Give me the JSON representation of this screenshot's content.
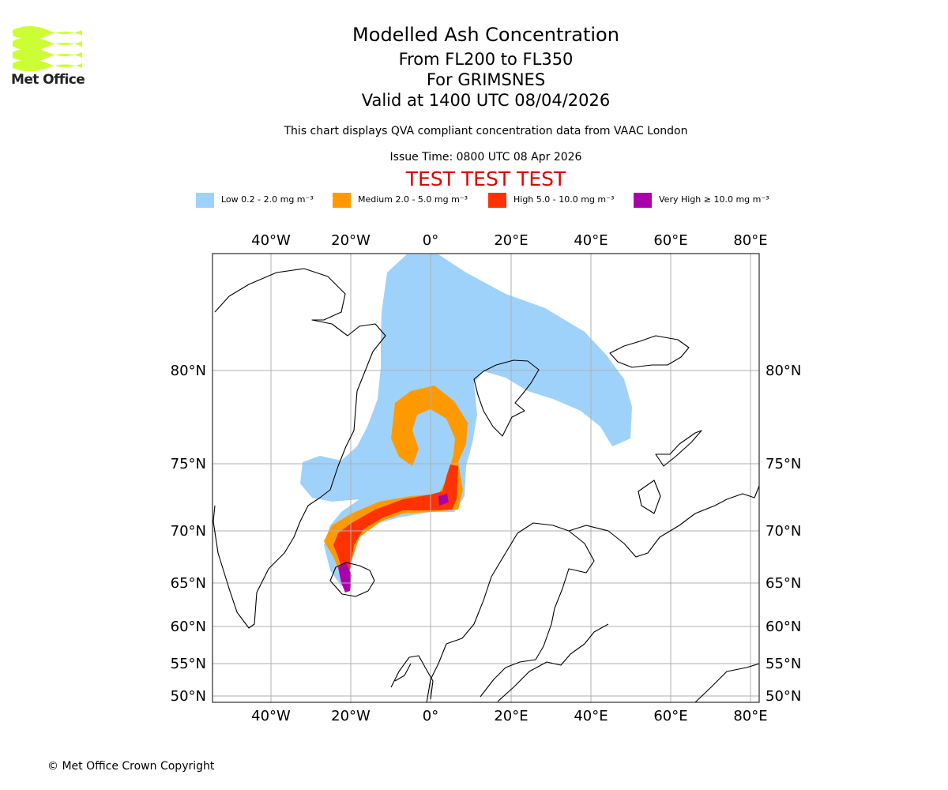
{
  "logo": {
    "text": "Met Office",
    "color": "#ccff33"
  },
  "titles": {
    "main": "Modelled Ash Concentration",
    "levels": "From FL200 to FL350",
    "volcano": "For GRIMSNES",
    "valid": "Valid at 1400 UTC 08/04/2026"
  },
  "note": "This chart displays QVA compliant concentration data from VAAC London",
  "issue_time": "Issue Time: 0800 UTC 08 Apr 2026",
  "test_banner": "TEST TEST TEST",
  "legend": [
    {
      "label": "Low 0.2 - 2.0 mg m⁻³",
      "color": "#9ed2fa"
    },
    {
      "label": "Medium 2.0 - 5.0 mg m⁻³",
      "color": "#ff9900"
    },
    {
      "label": "High 5.0 - 10.0 mg m⁻³",
      "color": "#ff3300"
    },
    {
      "label": "Very High ≥ 10.0 mg m⁻³",
      "color": "#aa00aa"
    }
  ],
  "axes": {
    "longitudes": [
      "40°W",
      "20°W",
      "0°",
      "20°E",
      "40°E",
      "60°E",
      "80°E"
    ],
    "latitudes": [
      "80°N",
      "75°N",
      "70°N",
      "65°N",
      "60°N",
      "55°N",
      "50°N"
    ]
  },
  "copyright": "© Met Office Crown Copyright"
}
